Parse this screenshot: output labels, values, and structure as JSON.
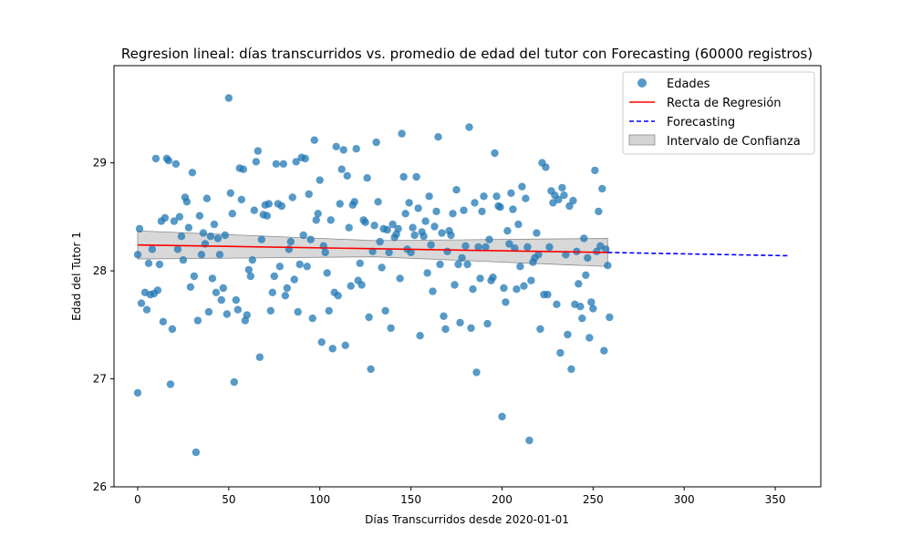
{
  "chart_data": {
    "type": "scatter",
    "title": "Regresion lineal: días transcurridos vs. promedio de edad del tutor con Forecasting (60000 registros)",
    "xlabel": "Días Transcurridos desde 2020-01-01",
    "ylabel": "Edad del Tutor 1",
    "xlim": [
      -13,
      375
    ],
    "ylim": [
      26,
      29.9
    ],
    "xticks": [
      0,
      50,
      100,
      150,
      200,
      250,
      300,
      350
    ],
    "yticks": [
      26,
      27,
      28,
      29
    ],
    "grid": false,
    "legend_position": "top-right",
    "colors": {
      "scatter": "#1f77b4",
      "regression": "#ff0000",
      "forecast": "#0000ff",
      "confidence": "#a9a9a9"
    },
    "legend": {
      "scatter": "Edades",
      "regression": "Recta de Regresión",
      "forecast": "Forecasting",
      "confidence": "Intervalo de Confianza"
    },
    "regression": {
      "x": [
        0,
        258
      ],
      "y": [
        28.24,
        28.17
      ]
    },
    "forecast": {
      "x": [
        258,
        357
      ],
      "y": [
        28.17,
        28.14
      ]
    },
    "confidence": {
      "x": [
        0,
        130,
        258
      ],
      "upper": [
        28.37,
        28.28,
        28.3
      ],
      "lower": [
        28.11,
        28.13,
        28.04
      ]
    },
    "points": [
      [
        0,
        26.87
      ],
      [
        0,
        28.15
      ],
      [
        1,
        28.39
      ],
      [
        2,
        27.7
      ],
      [
        4,
        27.8
      ],
      [
        5,
        27.64
      ],
      [
        6,
        28.07
      ],
      [
        7,
        27.78
      ],
      [
        8,
        28.2
      ],
      [
        9,
        27.79
      ],
      [
        10,
        29.04
      ],
      [
        11,
        27.82
      ],
      [
        12,
        28.06
      ],
      [
        13,
        28.46
      ],
      [
        14,
        27.53
      ],
      [
        15,
        28.49
      ],
      [
        16,
        29.04
      ],
      [
        17,
        29.02
      ],
      [
        18,
        26.95
      ],
      [
        19,
        27.46
      ],
      [
        20,
        28.46
      ],
      [
        21,
        28.99
      ],
      [
        22,
        28.2
      ],
      [
        23,
        28.5
      ],
      [
        24,
        28.32
      ],
      [
        25,
        28.1
      ],
      [
        26,
        28.68
      ],
      [
        27,
        28.64
      ],
      [
        28,
        28.4
      ],
      [
        29,
        27.85
      ],
      [
        30,
        28.91
      ],
      [
        31,
        27.95
      ],
      [
        32,
        26.32
      ],
      [
        33,
        27.54
      ],
      [
        34,
        28.51
      ],
      [
        35,
        28.15
      ],
      [
        36,
        28.35
      ],
      [
        37,
        28.25
      ],
      [
        38,
        28.67
      ],
      [
        39,
        27.62
      ],
      [
        40,
        28.32
      ],
      [
        41,
        27.93
      ],
      [
        42,
        28.43
      ],
      [
        43,
        27.8
      ],
      [
        44,
        28.3
      ],
      [
        45,
        28.15
      ],
      [
        46,
        27.73
      ],
      [
        47,
        27.84
      ],
      [
        48,
        28.33
      ],
      [
        49,
        27.6
      ],
      [
        50,
        29.6
      ],
      [
        51,
        28.72
      ],
      [
        52,
        28.53
      ],
      [
        53,
        26.97
      ],
      [
        54,
        27.73
      ],
      [
        55,
        27.64
      ],
      [
        56,
        28.95
      ],
      [
        57,
        28.66
      ],
      [
        58,
        28.94
      ],
      [
        59,
        27.54
      ],
      [
        60,
        27.59
      ],
      [
        61,
        28.01
      ],
      [
        62,
        27.95
      ],
      [
        63,
        28.1
      ],
      [
        64,
        28.56
      ],
      [
        65,
        29.01
      ],
      [
        66,
        29.11
      ],
      [
        67,
        27.2
      ],
      [
        68,
        28.29
      ],
      [
        69,
        28.52
      ],
      [
        70,
        28.61
      ],
      [
        71,
        28.51
      ],
      [
        72,
        28.62
      ],
      [
        73,
        27.63
      ],
      [
        74,
        27.8
      ],
      [
        75,
        27.95
      ],
      [
        76,
        28.99
      ],
      [
        77,
        28.62
      ],
      [
        78,
        28.04
      ],
      [
        79,
        28.6
      ],
      [
        80,
        28.99
      ],
      [
        81,
        27.77
      ],
      [
        82,
        27.84
      ],
      [
        83,
        28.2
      ],
      [
        84,
        28.27
      ],
      [
        85,
        28.68
      ],
      [
        86,
        27.92
      ],
      [
        87,
        29.01
      ],
      [
        88,
        27.62
      ],
      [
        89,
        28.06
      ],
      [
        90,
        29.05
      ],
      [
        91,
        28.33
      ],
      [
        92,
        29.04
      ],
      [
        93,
        28.04
      ],
      [
        94,
        28.71
      ],
      [
        95,
        28.29
      ],
      [
        96,
        27.56
      ],
      [
        97,
        29.21
      ],
      [
        98,
        28.47
      ],
      [
        99,
        28.53
      ],
      [
        100,
        28.84
      ],
      [
        101,
        27.34
      ],
      [
        102,
        28.23
      ],
      [
        103,
        28.17
      ],
      [
        104,
        27.98
      ],
      [
        105,
        27.63
      ],
      [
        106,
        28.47
      ],
      [
        107,
        27.28
      ],
      [
        108,
        27.8
      ],
      [
        109,
        29.15
      ],
      [
        110,
        27.77
      ],
      [
        111,
        28.62
      ],
      [
        112,
        28.94
      ],
      [
        113,
        29.12
      ],
      [
        114,
        27.31
      ],
      [
        115,
        28.88
      ],
      [
        116,
        28.4
      ],
      [
        117,
        27.86
      ],
      [
        118,
        28.61
      ],
      [
        119,
        28.64
      ],
      [
        120,
        29.13
      ],
      [
        121,
        27.91
      ],
      [
        122,
        28.07
      ],
      [
        123,
        27.87
      ],
      [
        124,
        28.47
      ],
      [
        125,
        28.45
      ],
      [
        126,
        28.86
      ],
      [
        127,
        27.57
      ],
      [
        128,
        27.09
      ],
      [
        129,
        28.18
      ],
      [
        130,
        28.42
      ],
      [
        131,
        29.19
      ],
      [
        132,
        28.64
      ],
      [
        133,
        28.27
      ],
      [
        134,
        28.03
      ],
      [
        135,
        28.39
      ],
      [
        136,
        27.63
      ],
      [
        137,
        28.38
      ],
      [
        138,
        28.17
      ],
      [
        139,
        27.47
      ],
      [
        140,
        28.43
      ],
      [
        141,
        28.31
      ],
      [
        142,
        28.34
      ],
      [
        143,
        28.39
      ],
      [
        144,
        27.93
      ],
      [
        145,
        29.27
      ],
      [
        146,
        28.87
      ],
      [
        147,
        28.53
      ],
      [
        148,
        28.2
      ],
      [
        149,
        28.63
      ],
      [
        150,
        28.17
      ],
      [
        151,
        28.4
      ],
      [
        152,
        28.33
      ],
      [
        153,
        28.87
      ],
      [
        154,
        28.58
      ],
      [
        155,
        27.4
      ],
      [
        156,
        28.36
      ],
      [
        157,
        28.32
      ],
      [
        158,
        28.46
      ],
      [
        159,
        27.98
      ],
      [
        160,
        28.69
      ],
      [
        161,
        28.24
      ],
      [
        162,
        27.81
      ],
      [
        163,
        28.41
      ],
      [
        164,
        28.55
      ],
      [
        165,
        29.24
      ],
      [
        166,
        28.06
      ],
      [
        167,
        28.35
      ],
      [
        168,
        27.58
      ],
      [
        169,
        27.46
      ],
      [
        170,
        28.18
      ],
      [
        171,
        28.37
      ],
      [
        172,
        28.33
      ],
      [
        173,
        28.53
      ],
      [
        174,
        27.87
      ],
      [
        175,
        28.75
      ],
      [
        176,
        28.06
      ],
      [
        177,
        27.52
      ],
      [
        178,
        28.12
      ],
      [
        179,
        28.56
      ],
      [
        180,
        28.23
      ],
      [
        181,
        28.06
      ],
      [
        182,
        29.33
      ],
      [
        183,
        27.47
      ],
      [
        184,
        27.83
      ],
      [
        185,
        28.63
      ],
      [
        186,
        27.06
      ],
      [
        187,
        28.22
      ],
      [
        188,
        27.93
      ],
      [
        189,
        28.55
      ],
      [
        190,
        28.69
      ],
      [
        191,
        28.22
      ],
      [
        192,
        27.51
      ],
      [
        193,
        28.29
      ],
      [
        194,
        27.91
      ],
      [
        195,
        27.94
      ],
      [
        196,
        29.09
      ],
      [
        197,
        28.69
      ],
      [
        198,
        28.6
      ],
      [
        199,
        28.59
      ],
      [
        200,
        26.65
      ],
      [
        201,
        27.84
      ],
      [
        202,
        27.71
      ],
      [
        203,
        28.37
      ],
      [
        204,
        28.25
      ],
      [
        205,
        28.72
      ],
      [
        206,
        28.57
      ],
      [
        207,
        28.21
      ],
      [
        208,
        27.83
      ],
      [
        209,
        28.43
      ],
      [
        210,
        28.04
      ],
      [
        211,
        28.78
      ],
      [
        212,
        27.86
      ],
      [
        213,
        28.67
      ],
      [
        214,
        28.22
      ],
      [
        215,
        26.43
      ],
      [
        216,
        27.91
      ],
      [
        217,
        28.08
      ],
      [
        218,
        28.12
      ],
      [
        219,
        28.35
      ],
      [
        220,
        28.15
      ],
      [
        221,
        27.46
      ],
      [
        222,
        29.0
      ],
      [
        223,
        27.78
      ],
      [
        224,
        28.96
      ],
      [
        225,
        27.78
      ],
      [
        226,
        28.22
      ],
      [
        227,
        28.74
      ],
      [
        228,
        28.63
      ],
      [
        229,
        28.7
      ],
      [
        230,
        27.69
      ],
      [
        231,
        28.66
      ],
      [
        232,
        27.24
      ],
      [
        233,
        28.77
      ],
      [
        234,
        28.7
      ],
      [
        235,
        28.15
      ],
      [
        236,
        27.41
      ],
      [
        237,
        28.6
      ],
      [
        238,
        27.09
      ],
      [
        239,
        28.65
      ],
      [
        240,
        27.69
      ],
      [
        241,
        28.18
      ],
      [
        242,
        27.88
      ],
      [
        243,
        27.67
      ],
      [
        244,
        27.56
      ],
      [
        245,
        28.3
      ],
      [
        246,
        27.96
      ],
      [
        247,
        28.12
      ],
      [
        248,
        27.38
      ],
      [
        249,
        27.71
      ],
      [
        250,
        27.65
      ],
      [
        251,
        28.93
      ],
      [
        252,
        28.18
      ],
      [
        253,
        28.55
      ],
      [
        254,
        28.23
      ],
      [
        255,
        28.76
      ],
      [
        256,
        27.26
      ],
      [
        257,
        28.2
      ],
      [
        258,
        28.05
      ],
      [
        259,
        27.57
      ]
    ]
  }
}
